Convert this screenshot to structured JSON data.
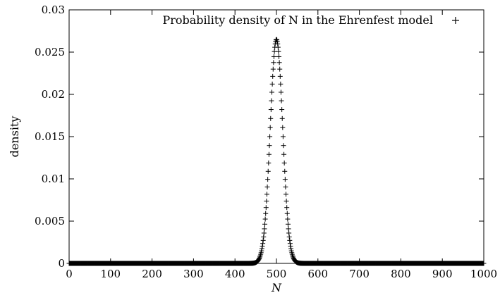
{
  "chart_data": {
    "type": "scatter",
    "title": "",
    "xlabel": "N",
    "ylabel": "density",
    "xlim": [
      0,
      1000
    ],
    "ylim": [
      0,
      0.03
    ],
    "xticks": [
      "0",
      "100",
      "200",
      "300",
      "400",
      "500",
      "600",
      "700",
      "800",
      "900",
      "1000"
    ],
    "yticks": [
      "0",
      "0.005",
      "0.01",
      "0.015",
      "0.02",
      "0.025",
      "0.03"
    ],
    "grid": false,
    "legend_position": "top-right",
    "marker": "+",
    "series": [
      {
        "name": "Probability density of N in the Ehrenfest model",
        "color": "#000000",
        "distribution": {
          "mean": 500,
          "sd": 15,
          "peak": 0.0265
        },
        "x": [
          0,
          1000
        ],
        "y": [
          0,
          0
        ]
      }
    ]
  }
}
